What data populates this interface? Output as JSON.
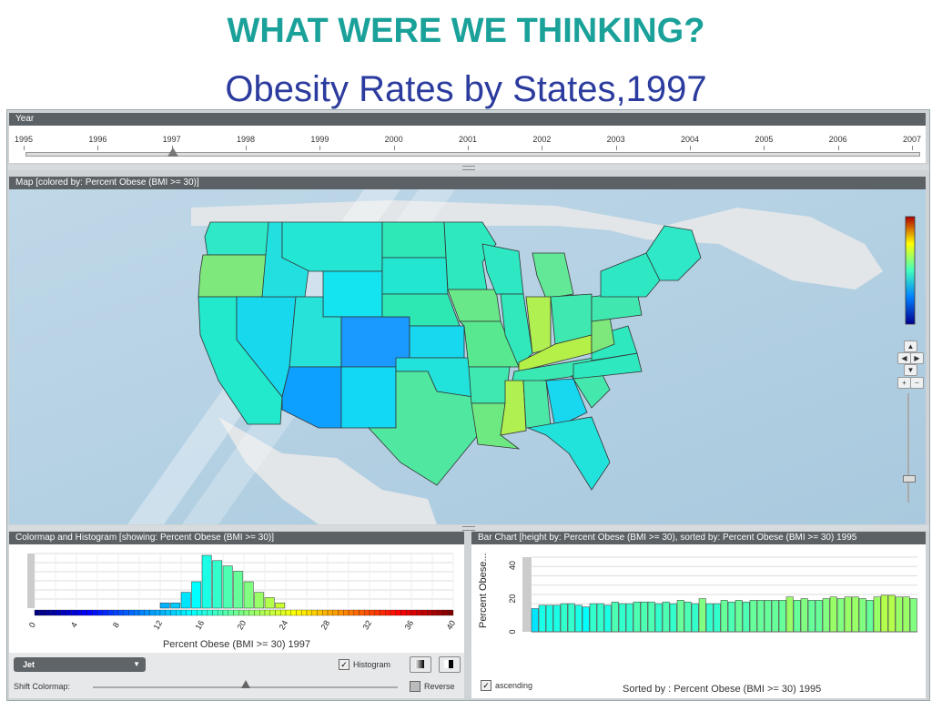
{
  "slide": {
    "title": "WHAT WERE WE THINKING?",
    "subtitle": "Obesity Rates by States,1997"
  },
  "year_panel": {
    "header": "Year",
    "years": [
      "1995",
      "1996",
      "1997",
      "1998",
      "1999",
      "2000",
      "2001",
      "2002",
      "2003",
      "2004",
      "2005",
      "2006",
      "2007"
    ],
    "selected": "1997"
  },
  "map_panel": {
    "header": "Map [colored by: Percent Obese (BMI >= 30)]",
    "nav": {
      "up": "▲",
      "left": "◀",
      "right": "▶",
      "down": "▼",
      "zoom_in": "+",
      "zoom_out": "−"
    }
  },
  "colormap_panel": {
    "header": "Colormap and Histogram [showing: Percent Obese (BMI >= 30)]",
    "ticks": [
      "0",
      "4",
      "8",
      "12",
      "16",
      "20",
      "24",
      "28",
      "32",
      "36",
      "40"
    ],
    "xlabel": "Percent Obese (BMI >= 30) 1997",
    "colormap_select": "Jet",
    "histogram_label": "Histogram",
    "histogram_checked": true,
    "shift_label": "Shift Colormap:",
    "reverse_label": "Reverse",
    "reverse_checked": false,
    "shift_value": 0.5
  },
  "bar_panel": {
    "header": "Bar Chart [height by: Percent Obese (BMI >= 30), sorted by: Percent Obese (BMI >= 30) 1995",
    "ylabel": "Percent Obese...",
    "yticks": [
      "0",
      "20",
      "40"
    ],
    "ascending_label": "ascending",
    "ascending_checked": true,
    "xlabel": "Sorted by : Percent Obese (BMI >= 30) 1995"
  },
  "chart_data": [
    {
      "type": "bar",
      "title": "Colormap and Histogram [showing: Percent Obese (BMI >= 30)]",
      "xlabel": "Percent Obese (BMI >= 30) 1997",
      "xlim": [
        0,
        40
      ],
      "bins": [
        12,
        13,
        14,
        15,
        16,
        17,
        18,
        19,
        20,
        21,
        22,
        23
      ],
      "values": [
        1,
        1,
        3,
        5,
        10,
        9,
        8,
        7,
        5,
        3,
        2,
        1
      ]
    },
    {
      "type": "bar",
      "title": "Bar Chart [height by: Percent Obese (BMI >= 30), sorted by: Percent Obese (BMI >= 30) 1995",
      "xlabel": "Sorted by : Percent Obese (BMI >= 30) 1995",
      "ylabel": "Percent Obese...",
      "ylim": [
        0,
        45
      ],
      "values": [
        14,
        16,
        16,
        16,
        17,
        17,
        16,
        15,
        17,
        17,
        16,
        18,
        17,
        17,
        18,
        18,
        18,
        17,
        18,
        17,
        19,
        18,
        17,
        20,
        17,
        17,
        19,
        18,
        19,
        18,
        19,
        19,
        19,
        19,
        19,
        21,
        19,
        20,
        19,
        19,
        20,
        21,
        20,
        21,
        21,
        20,
        19,
        21,
        22,
        22,
        21,
        21,
        20
      ]
    }
  ]
}
